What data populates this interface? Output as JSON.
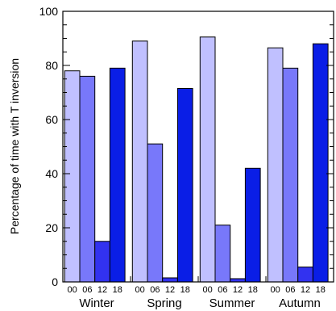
{
  "chart_data": {
    "type": "bar",
    "ylabel": "Percentage of time with T inversion",
    "xlabel": "",
    "ylim": [
      0,
      100
    ],
    "yticks": [
      0,
      20,
      40,
      60,
      80,
      100
    ],
    "yminor_step": 5,
    "groups": [
      "Winter",
      "Spring",
      "Summer",
      "Autumn"
    ],
    "hours": [
      "00",
      "06",
      "12",
      "18"
    ],
    "hour_colors": [
      "#c0c0ff",
      "#7878fa",
      "#3232f0",
      "#0a1ee6"
    ],
    "values": [
      [
        78,
        76,
        15,
        79
      ],
      [
        89,
        51,
        1.5,
        71.5
      ],
      [
        90.5,
        21,
        1.2,
        42
      ],
      [
        86.5,
        79,
        5.5,
        88
      ]
    ]
  }
}
